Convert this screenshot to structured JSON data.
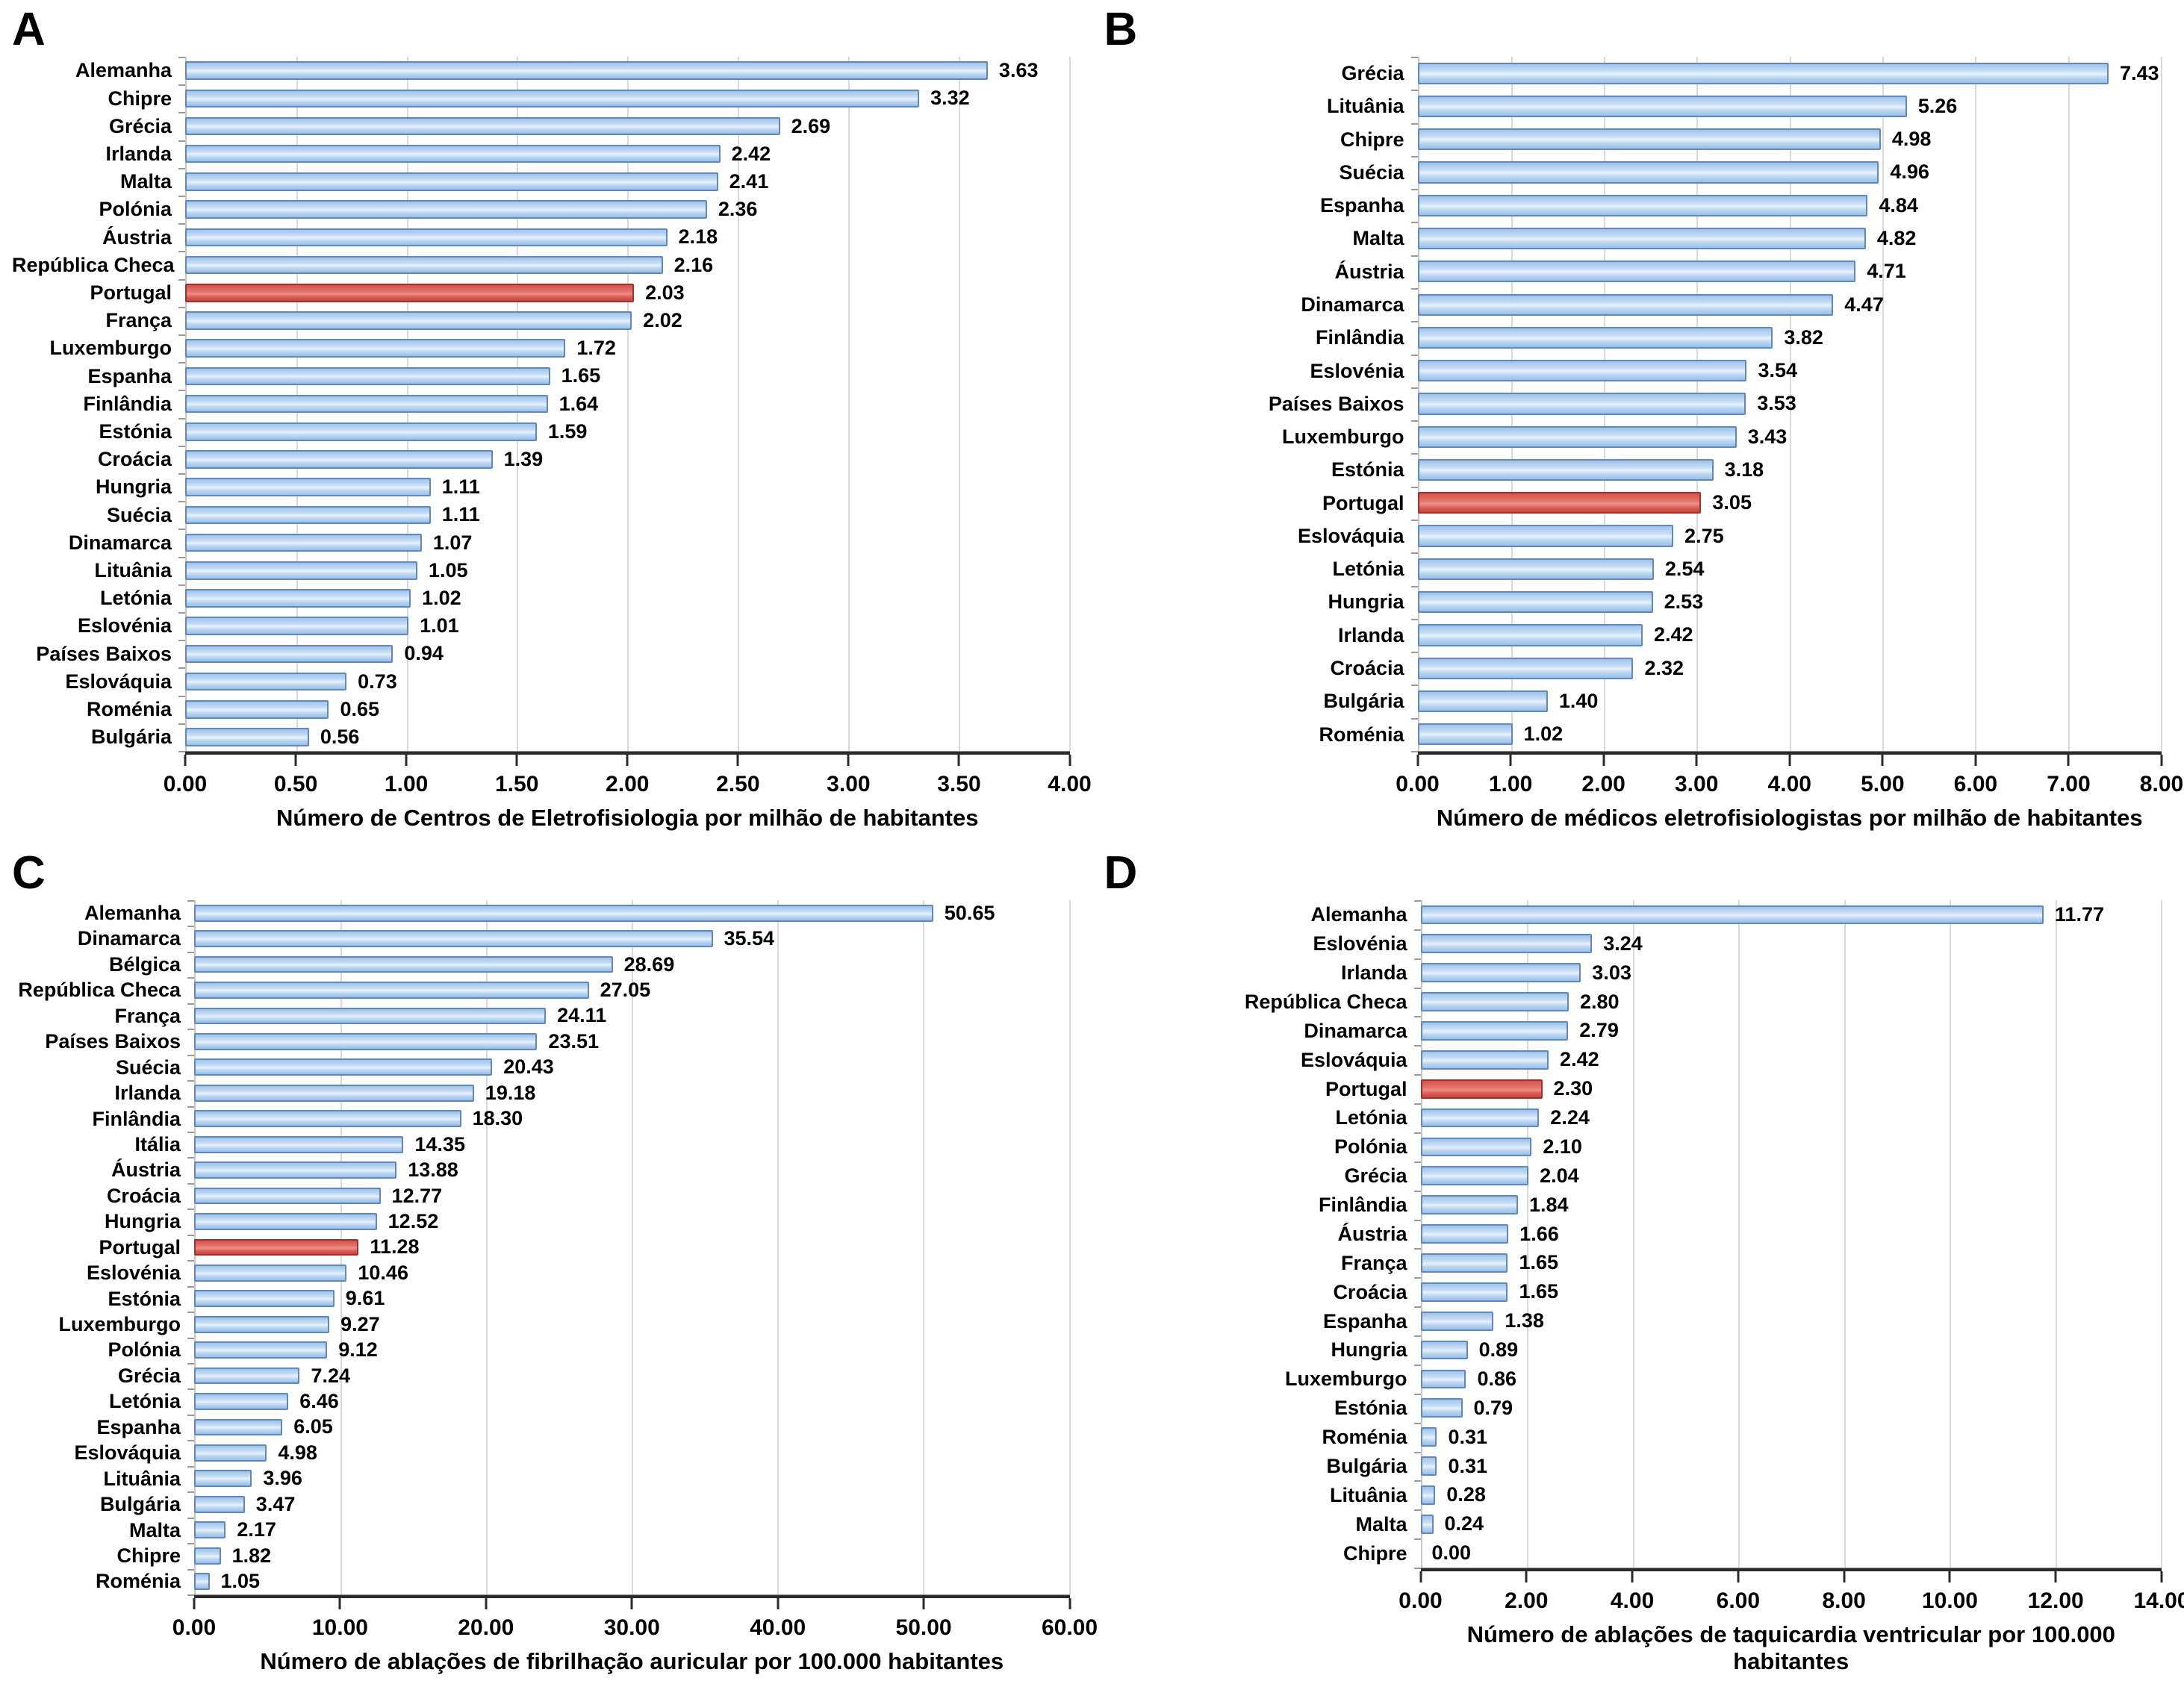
{
  "figure": {
    "background": "#ffffff",
    "colors": {
      "bar_fill": "#aecbee",
      "bar_border": "#6088ba",
      "highlight_fill": "#dd5a54",
      "highlight_border": "#9e322e",
      "gridline": "#d9d9d9",
      "axis": "#2b2b2b"
    }
  },
  "chart_data": [
    {
      "type": "bar",
      "orientation": "horizontal",
      "letter": "A",
      "xlabel": "Número de Centros de Eletrofisiologia por milhão de habitantes",
      "xlim": [
        0,
        4
      ],
      "xticks": [
        "0.00",
        "0.50",
        "1.00",
        "1.50",
        "2.00",
        "2.50",
        "3.00",
        "3.50",
        "4.00"
      ],
      "grid": true,
      "highlight": "Portugal",
      "categories": [
        "Alemanha",
        "Chipre",
        "Grécia",
        "Irlanda",
        "Malta",
        "Polónia",
        "Áustria",
        "República Checa",
        "Portugal",
        "França",
        "Luxemburgo",
        "Espanha",
        "Finlândia",
        "Estónia",
        "Croácia",
        "Hungria",
        "Suécia",
        "Dinamarca",
        "Lituânia",
        "Letónia",
        "Eslovénia",
        "Países Baixos",
        "Eslováquia",
        "Roménia",
        "Bulgária"
      ],
      "values": [
        3.63,
        3.32,
        2.69,
        2.42,
        2.41,
        2.36,
        2.18,
        2.16,
        2.03,
        2.02,
        1.72,
        1.65,
        1.64,
        1.59,
        1.39,
        1.11,
        1.11,
        1.07,
        1.05,
        1.02,
        1.01,
        0.94,
        0.73,
        0.65,
        0.56
      ]
    },
    {
      "type": "bar",
      "orientation": "horizontal",
      "letter": "B",
      "xlabel": "Número de médicos eletrofisiologistas por milhão de habitantes",
      "xlim": [
        0,
        8
      ],
      "xticks": [
        "0.00",
        "1.00",
        "2.00",
        "3.00",
        "4.00",
        "5.00",
        "6.00",
        "7.00",
        "8.00"
      ],
      "grid": true,
      "highlight": "Portugal",
      "categories": [
        "Grécia",
        "Lituânia",
        "Chipre",
        "Suécia",
        "Espanha",
        "Malta",
        "Áustria",
        "Dinamarca",
        "Finlândia",
        "Eslovénia",
        "Países Baixos",
        "Luxemburgo",
        "Estónia",
        "Portugal",
        "Eslováquia",
        "Letónia",
        "Hungria",
        "Irlanda",
        "Croácia",
        "Bulgária",
        "Roménia"
      ],
      "values": [
        7.43,
        5.26,
        4.98,
        4.96,
        4.84,
        4.82,
        4.71,
        4.47,
        3.82,
        3.54,
        3.53,
        3.43,
        3.18,
        3.05,
        2.75,
        2.54,
        2.53,
        2.42,
        2.32,
        1.4,
        1.02
      ]
    },
    {
      "type": "bar",
      "orientation": "horizontal",
      "letter": "C",
      "xlabel": "Número de ablações de fibrilhação auricular por 100.000 habitantes",
      "xlim": [
        0,
        60
      ],
      "xticks": [
        "0.00",
        "10.00",
        "20.00",
        "30.00",
        "40.00",
        "50.00",
        "60.00"
      ],
      "grid": true,
      "highlight": "Portugal",
      "categories": [
        "Alemanha",
        "Dinamarca",
        "Bélgica",
        "República Checa",
        "França",
        "Países Baixos",
        "Suécia",
        "Irlanda",
        "Finlândia",
        "Itália",
        "Áustria",
        "Croácia",
        "Hungria",
        "Portugal",
        "Eslovénia",
        "Estónia",
        "Luxemburgo",
        "Polónia",
        "Grécia",
        "Letónia",
        "Espanha",
        "Eslováquia",
        "Lituânia",
        "Bulgária",
        "Malta",
        "Chipre",
        "Roménia"
      ],
      "values": [
        50.65,
        35.54,
        28.69,
        27.05,
        24.11,
        23.51,
        20.43,
        19.18,
        18.3,
        14.35,
        13.88,
        12.77,
        12.52,
        11.28,
        10.46,
        9.61,
        9.27,
        9.12,
        7.24,
        6.46,
        6.05,
        4.98,
        3.96,
        3.47,
        2.17,
        1.82,
        1.05
      ]
    },
    {
      "type": "bar",
      "orientation": "horizontal",
      "letter": "D",
      "xlabel": "Número de ablações de taquicardia ventricular por 100.000 habitantes",
      "xlim": [
        0,
        14
      ],
      "xticks": [
        "0.00",
        "2.00",
        "4.00",
        "6.00",
        "8.00",
        "10.00",
        "12.00",
        "14.00"
      ],
      "grid": true,
      "highlight": "Portugal",
      "categories": [
        "Alemanha",
        "Eslovénia",
        "Irlanda",
        "República Checa",
        "Dinamarca",
        "Eslováquia",
        "Portugal",
        "Letónia",
        "Polónia",
        "Grécia",
        "Finlândia",
        "Áustria",
        "França",
        "Croácia",
        "Espanha",
        "Hungria",
        "Luxemburgo",
        "Estónia",
        "Roménia",
        "Bulgária",
        "Lituânia",
        "Malta",
        "Chipre"
      ],
      "values": [
        11.77,
        3.24,
        3.03,
        2.8,
        2.79,
        2.42,
        2.3,
        2.24,
        2.1,
        2.04,
        1.84,
        1.66,
        1.65,
        1.65,
        1.38,
        0.89,
        0.86,
        0.79,
        0.31,
        0.31,
        0.28,
        0.24,
        0.0
      ]
    }
  ]
}
